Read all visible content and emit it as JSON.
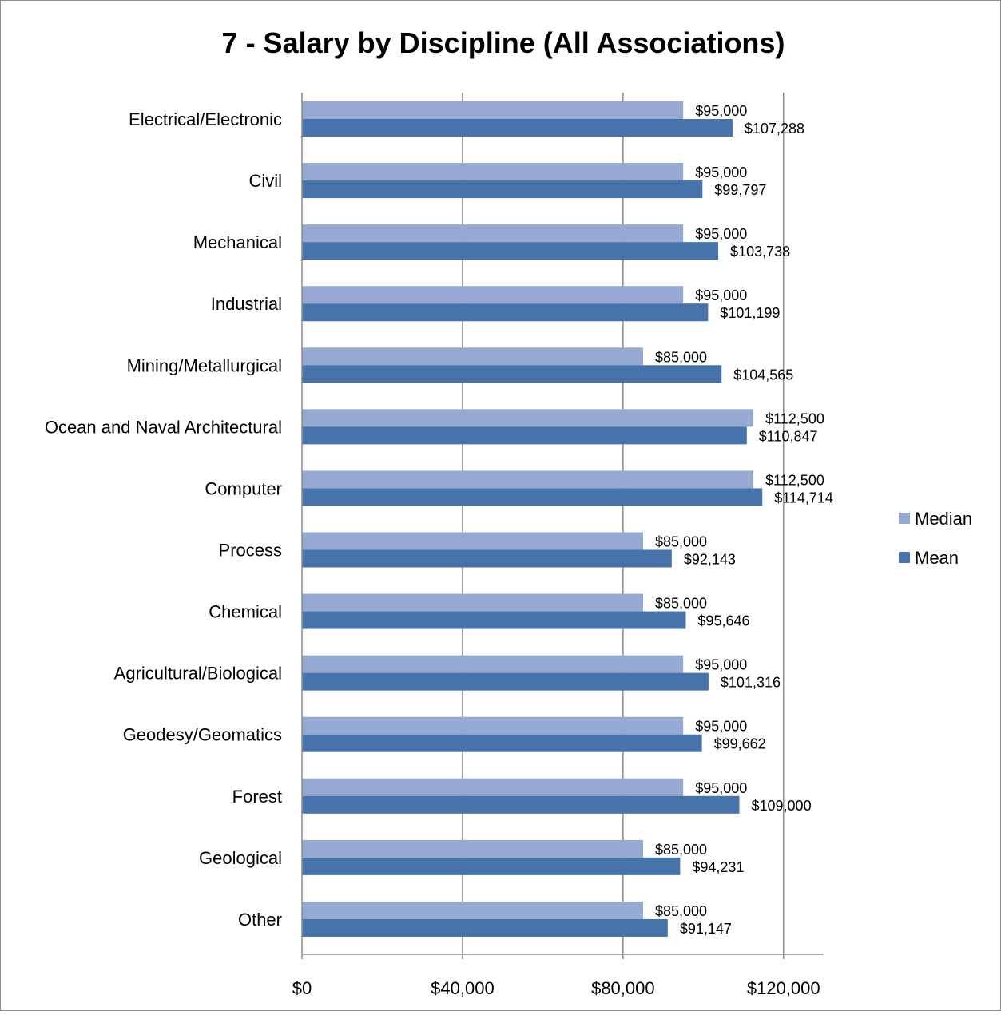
{
  "chart_data": {
    "type": "bar",
    "orientation": "horizontal",
    "title": "7 - Salary by Discipline (All Associations)",
    "categories": [
      "Electrical/Electronic",
      "Civil",
      "Mechanical",
      "Industrial",
      "Mining/Metallurgical",
      "Ocean and Naval Architectural",
      "Computer",
      "Process",
      "Chemical",
      "Agricultural/Biological",
      "Geodesy/Geomatics",
      "Forest",
      "Geological",
      "Other"
    ],
    "series": [
      {
        "name": "Median",
        "color": "#95A9D2",
        "values": [
          95000,
          95000,
          95000,
          95000,
          85000,
          112500,
          112500,
          85000,
          85000,
          95000,
          95000,
          95000,
          85000,
          85000
        ],
        "labels": [
          "$95,000",
          "$95,000",
          "$95,000",
          "$95,000",
          "$85,000",
          "$112,500",
          "$112,500",
          "$85,000",
          "$85,000",
          "$95,000",
          "$95,000",
          "$95,000",
          "$85,000",
          "$85,000"
        ]
      },
      {
        "name": "Mean",
        "color": "#4673AA",
        "values": [
          107288,
          99797,
          103738,
          101199,
          104565,
          110847,
          114714,
          92143,
          95646,
          101316,
          99662,
          109000,
          94231,
          91147
        ],
        "labels": [
          "$107,288",
          "$99,797",
          "$103,738",
          "$101,199",
          "$104,565",
          "$110,847",
          "$114,714",
          "$92,143",
          "$95,646",
          "$101,316",
          "$99,662",
          "$109,000",
          "$94,231",
          "$91,147"
        ]
      }
    ],
    "xlim": [
      0,
      130000
    ],
    "xticks": [
      0,
      40000,
      80000,
      120000
    ],
    "xtick_labels": [
      "$0",
      "$40,000",
      "$80,000",
      "$120,000"
    ],
    "grid": true,
    "legend_position": "right"
  }
}
